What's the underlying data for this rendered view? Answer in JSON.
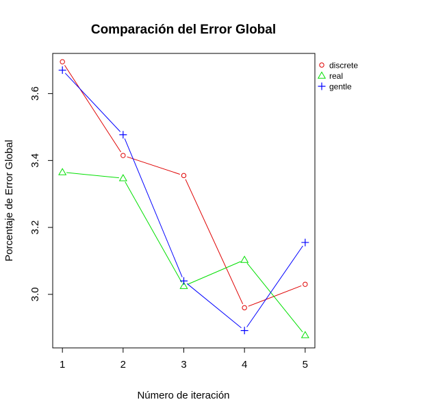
{
  "chart_data": {
    "type": "line",
    "title": "Comparación del Error Global",
    "xlabel": "Número de iteración",
    "ylabel": "Porcentaje de Error Global",
    "x": [
      1,
      2,
      3,
      4,
      5
    ],
    "x_ticks": [
      "1",
      "2",
      "3",
      "4",
      "5"
    ],
    "y_ticks": [
      "3.0",
      "3.2",
      "3.4",
      "3.6"
    ],
    "xlim": [
      0.84,
      5.16
    ],
    "ylim": [
      2.84,
      3.72
    ],
    "grid": false,
    "legend_position": "top-right, outside plot",
    "series": [
      {
        "name": "discrete",
        "color": "#DF0000",
        "marker": "circle",
        "values": [
          3.695,
          3.415,
          3.355,
          2.96,
          3.03
        ]
      },
      {
        "name": "real",
        "color": "#00DF00",
        "marker": "triangle",
        "values": [
          3.365,
          3.347,
          3.025,
          3.103,
          2.878
        ]
      },
      {
        "name": "gentle",
        "color": "#0000FF",
        "marker": "plus",
        "values": [
          3.67,
          3.477,
          3.04,
          2.892,
          3.155
        ]
      }
    ]
  }
}
